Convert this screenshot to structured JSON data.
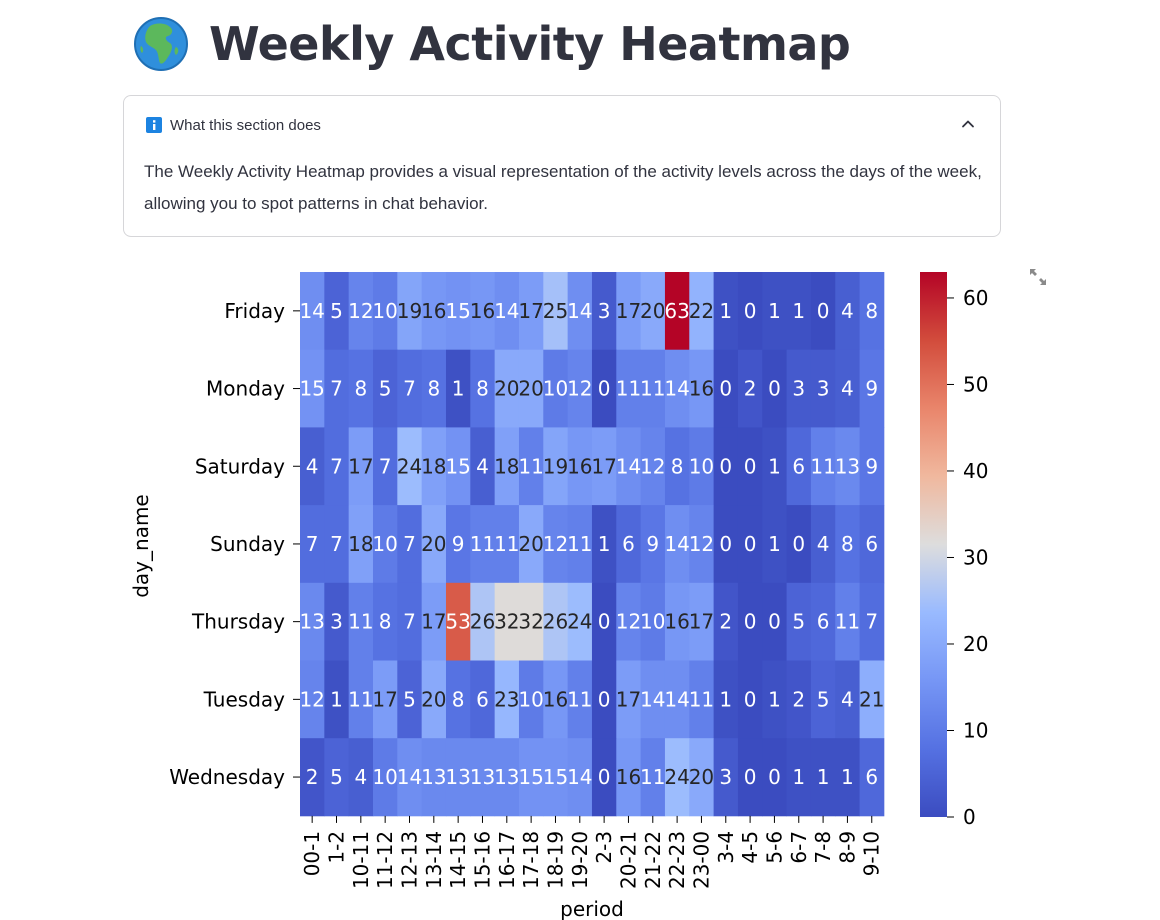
{
  "page": {
    "title": "Weekly Activity Heatmap",
    "title_icon": "globe-africa-icon"
  },
  "expander": {
    "label": "What this section does",
    "icon": "info-icon",
    "body": "The Weekly Activity Heatmap provides a visual representation of the activity levels across the days of the week, allowing you to spot patterns in chat behavior.",
    "expanded": true
  },
  "colors": {
    "low": "#3b4cc0",
    "mid": "#dddddd",
    "high": "#b40426",
    "info": "#1c83e1"
  },
  "chart_data": {
    "type": "heatmap",
    "xlabel": "period",
    "ylabel": "day_name",
    "x_categories": [
      "00-1",
      "1-2",
      "10-11",
      "11-12",
      "12-13",
      "13-14",
      "14-15",
      "15-16",
      "16-17",
      "17-18",
      "18-19",
      "19-20",
      "2-3",
      "20-21",
      "21-22",
      "22-23",
      "23-00",
      "3-4",
      "4-5",
      "5-6",
      "6-7",
      "7-8",
      "8-9",
      "9-10"
    ],
    "y_categories": [
      "Friday",
      "Monday",
      "Saturday",
      "Sunday",
      "Thursday",
      "Tuesday",
      "Wednesday"
    ],
    "values": [
      [
        14,
        5,
        12,
        10,
        19,
        16,
        15,
        16,
        14,
        17,
        25,
        14,
        3,
        17,
        20,
        63,
        22,
        1,
        0,
        1,
        1,
        0,
        4,
        8
      ],
      [
        15,
        7,
        8,
        5,
        7,
        8,
        1,
        8,
        20,
        20,
        10,
        12,
        0,
        11,
        11,
        14,
        16,
        0,
        2,
        0,
        3,
        3,
        4,
        9
      ],
      [
        4,
        7,
        17,
        7,
        24,
        18,
        15,
        4,
        18,
        11,
        19,
        16,
        17,
        14,
        12,
        8,
        10,
        0,
        0,
        1,
        6,
        11,
        13,
        9
      ],
      [
        7,
        7,
        18,
        10,
        7,
        20,
        9,
        11,
        11,
        20,
        12,
        11,
        1,
        6,
        9,
        14,
        12,
        0,
        0,
        1,
        0,
        4,
        8,
        6
      ],
      [
        13,
        3,
        11,
        8,
        7,
        17,
        53,
        26,
        32,
        32,
        26,
        24,
        0,
        12,
        10,
        16,
        17,
        2,
        0,
        0,
        5,
        6,
        11,
        7
      ],
      [
        12,
        1,
        11,
        17,
        5,
        20,
        8,
        6,
        23,
        10,
        16,
        11,
        0,
        17,
        14,
        14,
        11,
        1,
        0,
        1,
        2,
        5,
        4,
        21
      ],
      [
        2,
        5,
        4,
        10,
        14,
        13,
        13,
        13,
        13,
        15,
        15,
        14,
        0,
        16,
        11,
        24,
        20,
        3,
        0,
        0,
        1,
        1,
        1,
        6
      ]
    ],
    "colormap": "coolwarm",
    "colorbar": {
      "min": 0,
      "max": 63,
      "ticks": [
        0,
        10,
        20,
        30,
        40,
        50,
        60
      ]
    }
  }
}
